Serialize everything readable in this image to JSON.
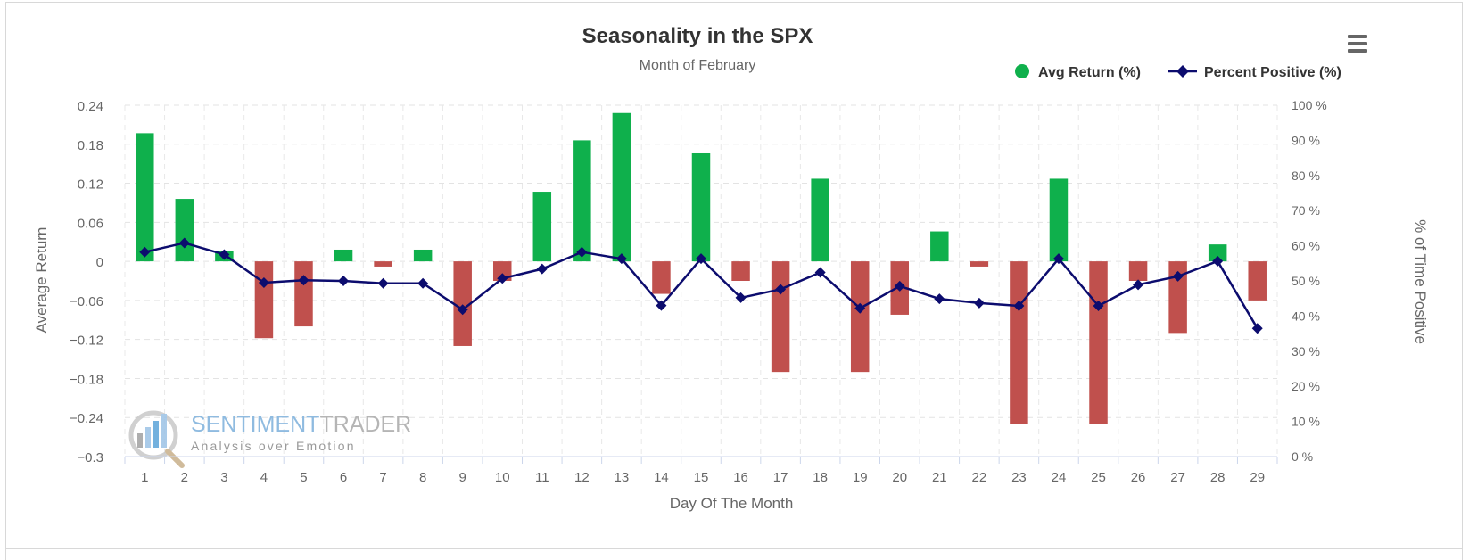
{
  "chart_data": {
    "type": "bar+line",
    "title": "Seasonality in the SPX",
    "subtitle": "Month of February",
    "xlabel": "Day Of The Month",
    "ylabel_left": "Average Return",
    "ylabel_right": "% of Time Positive",
    "categories": [
      "1",
      "2",
      "3",
      "4",
      "5",
      "6",
      "7",
      "8",
      "9",
      "10",
      "11",
      "12",
      "13",
      "14",
      "15",
      "16",
      "17",
      "18",
      "19",
      "20",
      "21",
      "22",
      "23",
      "24",
      "25",
      "26",
      "27",
      "28",
      "29"
    ],
    "ylim_left": [
      -0.3,
      0.24
    ],
    "yticks_left": [
      "0.24",
      "0.18",
      "0.12",
      "0.06",
      "0",
      "−0.06",
      "−0.12",
      "−0.18",
      "−0.24",
      "−0.3"
    ],
    "ylim_right": [
      0,
      100
    ],
    "yticks_right": [
      "100 %",
      "90 %",
      "80 %",
      "70 %",
      "60 %",
      "50 %",
      "40 %",
      "30 %",
      "20 %",
      "10 %",
      "0 %"
    ],
    "grid": true,
    "series": [
      {
        "name": "Avg Return (%)",
        "type": "bar",
        "positive_color": "#0fb04c",
        "negative_color": "#c0504d",
        "values": [
          0.197,
          0.096,
          0.016,
          -0.118,
          -0.1,
          0.018,
          -0.008,
          0.018,
          -0.13,
          -0.03,
          0.107,
          0.186,
          0.228,
          -0.05,
          0.166,
          -0.03,
          -0.17,
          0.127,
          -0.17,
          -0.082,
          0.046,
          -0.008,
          -0.25,
          0.127,
          -0.25,
          -0.03,
          -0.11,
          0.026,
          -0.06
        ]
      },
      {
        "name": "Percent Positive (%)",
        "type": "line",
        "color": "#0c0c6e",
        "values": [
          58.2,
          60.8,
          57.5,
          49.5,
          50.2,
          50.0,
          49.3,
          49.3,
          41.8,
          50.7,
          53.4,
          58.2,
          56.3,
          43.0,
          56.3,
          45.2,
          47.6,
          52.4,
          42.2,
          48.5,
          44.9,
          43.7,
          42.9,
          56.3,
          42.9,
          48.9,
          51.3,
          55.6,
          36.5
        ]
      }
    ]
  },
  "legend": {
    "avg_return": "Avg Return (%)",
    "percent_positive": "Percent Positive (%)"
  },
  "watermark": {
    "brand_part1": "SENTIMENT",
    "brand_part2": "TRADER",
    "tagline": "Analysis over Emotion"
  }
}
